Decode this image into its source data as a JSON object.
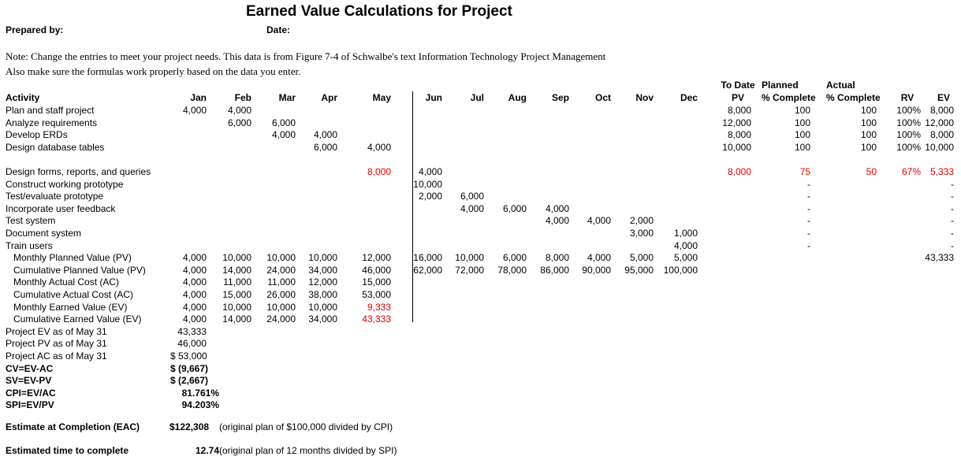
{
  "header": {
    "title": "Earned Value Calculations for Project",
    "prepared_by": "Prepared by:",
    "date": "Date:",
    "note1": "Note: Change the entries to meet your project needs. This data is from Figure 7-4 of Schwalbe's text Information Technology Project Management",
    "note2": "Also make sure the formulas work properly based on the data you enter."
  },
  "columns": {
    "activity": "Activity",
    "months": [
      "Jan",
      "Feb",
      "Mar",
      "Apr",
      "May",
      "Jun",
      "Jul",
      "Aug",
      "Sep",
      "Oct",
      "Nov",
      "Dec"
    ],
    "pv_top": "To Date",
    "pv": "PV",
    "planned_top": "Planned",
    "planned": "% Complete",
    "actual_top": "Actual",
    "actual": "% Complete",
    "rv": "RV",
    "ev": "EV"
  },
  "activities": [
    {
      "name": "Plan and staff project",
      "cells": {
        "Jan": "4,000",
        "Feb": "4,000"
      },
      "pv": "8,000",
      "planned": "100",
      "actual": "100",
      "rv": "100%",
      "ev": "8,000"
    },
    {
      "name": "Analyze requirements",
      "cells": {
        "Feb": "6,000",
        "Mar": "6,000"
      },
      "pv": "12,000",
      "planned": "100",
      "actual": "100",
      "rv": "100%",
      "ev": "12,000"
    },
    {
      "name": "Develop ERDs",
      "cells": {
        "Mar": "4,000",
        "Apr": "4,000"
      },
      "pv": "8,000",
      "planned": "100",
      "actual": "100",
      "rv": "100%",
      "ev": "8,000"
    },
    {
      "name": "Design database tables",
      "cells": {
        "Apr": "6,000",
        "May": "4,000"
      },
      "pv": "10,000",
      "planned": "100",
      "actual": "100",
      "rv": "100%",
      "ev": "10,000"
    },
    {
      "name": "",
      "cells": {}
    },
    {
      "name": "Design forms, reports, and queries",
      "cells": {
        "May": "8,000",
        "Jun": "4,000"
      },
      "red": [
        "May"
      ],
      "pv": "8,000",
      "planned": "75",
      "actual": "50",
      "rv": "67%",
      "ev": "5,333",
      "red_tail": true
    },
    {
      "name": "Construct working prototype",
      "cells": {
        "Jun": "10,000"
      },
      "planned": "-",
      "ev": "-"
    },
    {
      "name": "Test/evaluate prototype",
      "cells": {
        "Jun": "2,000",
        "Jul": "6,000"
      },
      "planned": "-",
      "ev": "-"
    },
    {
      "name": "Incorporate user feedback",
      "cells": {
        "Jul": "4,000",
        "Aug": "6,000",
        "Sep": "4,000"
      },
      "planned": "-",
      "ev": "-"
    },
    {
      "name": "Test system",
      "cells": {
        "Sep": "4,000",
        "Oct": "4,000",
        "Nov": "2,000"
      },
      "planned": "-",
      "ev": "-"
    },
    {
      "name": "Document system",
      "cells": {
        "Nov": "3,000",
        "Dec": "1,000"
      },
      "planned": "-",
      "ev": "-"
    },
    {
      "name": "Train users",
      "cells": {
        "Dec": "4,000"
      },
      "planned": "-",
      "ev": "-"
    }
  ],
  "summary_rows": [
    {
      "name": "Monthly Planned Value (PV)",
      "cells": {
        "Jan": "4,000",
        "Feb": "10,000",
        "Mar": "10,000",
        "Apr": "10,000",
        "May": "12,000",
        "Jun": "16,000",
        "Jul": "10,000",
        "Aug": "6,000",
        "Sep": "8,000",
        "Oct": "4,000",
        "Nov": "5,000",
        "Dec": "5,000"
      },
      "ev": "43,333"
    },
    {
      "name": "Cumulative Planned Value (PV)",
      "cells": {
        "Jan": "4,000",
        "Feb": "14,000",
        "Mar": "24,000",
        "Apr": "34,000",
        "May": "46,000",
        "Jun": "62,000",
        "Jul": "72,000",
        "Aug": "78,000",
        "Sep": "86,000",
        "Oct": "90,000",
        "Nov": "95,000",
        "Dec": "100,000"
      }
    },
    {
      "name": "Monthly Actual Cost (AC)",
      "cells": {
        "Jan": "4,000",
        "Feb": "11,000",
        "Mar": "11,000",
        "Apr": "12,000",
        "May": "15,000"
      }
    },
    {
      "name": "Cumulative Actual Cost (AC)",
      "cells": {
        "Jan": "4,000",
        "Feb": "15,000",
        "Mar": "26,000",
        "Apr": "38,000",
        "May": "53,000"
      }
    },
    {
      "name": "Monthly Earned Value (EV)",
      "cells": {
        "Jan": "4,000",
        "Feb": "10,000",
        "Mar": "10,000",
        "Apr": "10,000",
        "May": "9,333"
      },
      "red": [
        "May"
      ]
    },
    {
      "name": "Cumulative Earned Value (EV)",
      "cells": {
        "Jan": "4,000",
        "Feb": "14,000",
        "Mar": "24,000",
        "Apr": "34,000",
        "May": "43,333"
      },
      "red": [
        "May"
      ]
    }
  ],
  "totals": [
    {
      "label": "Project EV as of May 31",
      "value": "43,333",
      "bold": false
    },
    {
      "label": "Project PV as of May 31",
      "value": "46,000",
      "bold": false
    },
    {
      "label": "Project AC as of May 31",
      "value": "$  53,000",
      "bold": false
    },
    {
      "label": "CV=EV-AC",
      "value": "$  (9,667)",
      "bold": true
    },
    {
      "label": "SV=EV-PV",
      "value": "$  (2,667)",
      "bold": true
    },
    {
      "label": "CPI=EV/AC",
      "value": "81.761%",
      "bold": true
    },
    {
      "label": "SPI=EV/PV",
      "value": "94.203%",
      "bold": true
    }
  ],
  "eac": {
    "label": "Estimate at Completion (EAC)",
    "value": "$122,308",
    "note": "(original plan of $100,000 divided by CPI)"
  },
  "etc": {
    "label": "Estimated time to complete",
    "value": "12.74",
    "note": "(original plan of 12 months divided by SPI)"
  }
}
